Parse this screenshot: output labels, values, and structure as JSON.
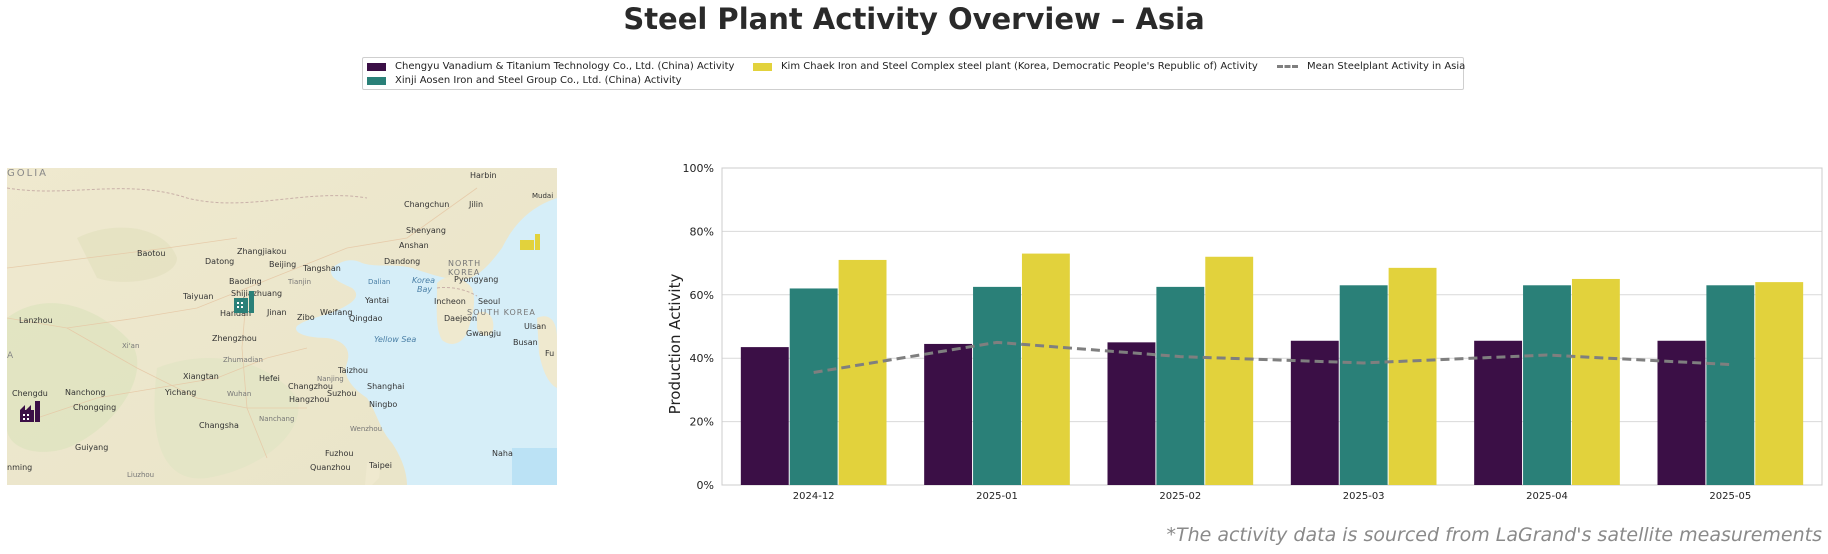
{
  "title": "Steel Plant Activity Overview – Asia",
  "legend": {
    "items": [
      {
        "label": "Chengyu Vanadium & Titanium Technology Co., Ltd. (China) Activity",
        "color": "#3b0f46",
        "kind": "bar"
      },
      {
        "label": "Xinji Aosen Iron and Steel Group Co., Ltd. (China) Activity",
        "color": "#2a8078",
        "kind": "bar"
      },
      {
        "label": "Kim Chaek Iron and Steel Complex steel plant (Korea, Democratic People's Republic of) Activity",
        "color": "#e2d23c",
        "kind": "bar"
      },
      {
        "label": "Mean Steelplant Activity in Asia",
        "color": "#7f7f7f",
        "kind": "dashed-line"
      }
    ]
  },
  "map": {
    "labels": {
      "mongolia": "GOLIA",
      "harbin": "Harbin",
      "mudan": "Mudai",
      "changchun": "Changchun",
      "jilin": "Jilin",
      "shenyang": "Shenyang",
      "anshan": "Anshan",
      "dandong": "Dandong",
      "baotou": "Baotou",
      "zhangjiakou": "Zhangjiakou",
      "datong": "Datong",
      "beijing": "Beijing",
      "tangshan": "Tangshan",
      "tianjin": "Tianjin",
      "dalian": "Dalian",
      "korea_bay": "Korea\nBay",
      "north_korea": "NORTH\nKOREA",
      "pyongyang": "Pyongyang",
      "baoding": "Baoding",
      "taiyuan": "Taiyuan",
      "shijiazhuang": "Shijiazhuang",
      "yantai": "Yantai",
      "incheon": "Incheon",
      "seoul": "Seoul",
      "handan": "Handan",
      "jinan": "Jinan",
      "zibo": "Zibo",
      "weifang": "Weifang",
      "qingdao": "Qingdao",
      "daejeon": "Daejeon",
      "south_korea": "SOUTH KOREA",
      "lanzhou": "Lanzhou",
      "gwangju": "Gwangju",
      "ulsan": "Ulsan",
      "busan": "Busan",
      "xian": "Xi'an",
      "zhengzhou": "Zhengzhou",
      "yellow_sea": "Yellow Sea",
      "fu": "Fu",
      "a": "A",
      "zhumadian": "Zhumadian",
      "xiangtan": "Xiangtan",
      "hefei": "Hefei",
      "taizhou": "Taizhou",
      "nanjing": "Nanjing",
      "changzhou": "Changzhou",
      "shanghai": "Shanghai",
      "suzhou": "Suzhou",
      "chengdu": "Chengdu",
      "nanchong": "Nanchong",
      "yichang": "Yichang",
      "wuhan": "Wuhan",
      "hangzhou": "Hangzhou",
      "ningbo": "Ningbo",
      "chongqing": "Chongqing",
      "nanchang": "Nanchang",
      "changsha": "Changsha",
      "wenzhou": "Wenzhou",
      "guiyang": "Guiyang",
      "fuzhou": "Fuzhou",
      "naha": "Naha",
      "kunming": "nming",
      "liuzhou": "Liuzhou",
      "quanzhou": "Quanzhou",
      "taipei": "Taipei"
    },
    "markers": [
      {
        "plant": "Chengyu Vanadium & Titanium Technology Co., Ltd.",
        "color": "#3b0f46",
        "icon": "factory-icon"
      },
      {
        "plant": "Xinji Aosen Iron and Steel Group Co., Ltd.",
        "color": "#2a8078",
        "icon": "factory-icon"
      },
      {
        "plant": "Kim Chaek Iron and Steel Complex",
        "color": "#e2d23c",
        "icon": "factory-icon"
      }
    ]
  },
  "chart_data": {
    "type": "bar",
    "categories": [
      "2024-12",
      "2025-01",
      "2025-02",
      "2025-03",
      "2025-04",
      "2025-05"
    ],
    "series": [
      {
        "name": "Chengyu Vanadium & Titanium Technology Co., Ltd. (China) Activity",
        "color": "#3b0f46",
        "values": [
          43.5,
          44.5,
          45,
          45.5,
          45.5,
          45.5
        ]
      },
      {
        "name": "Xinji Aosen Iron and Steel Group Co., Ltd. (China) Activity",
        "color": "#2a8078",
        "values": [
          62,
          62.5,
          62.5,
          63,
          63,
          63
        ]
      },
      {
        "name": "Kim Chaek Iron and Steel Complex steel plant (Korea, Democratic People's Republic of) Activity",
        "color": "#e2d23c",
        "values": [
          71,
          73,
          72,
          68.5,
          65,
          64
        ]
      }
    ],
    "line": {
      "name": "Mean Steelplant Activity in Asia",
      "color": "#7f7f7f",
      "style": "dashed",
      "values": [
        35.5,
        45,
        40.5,
        38.5,
        41,
        38
      ]
    },
    "ylabel": "Production Activity",
    "xlabel": "",
    "ylim": [
      0,
      100
    ],
    "yticks": [
      "0%",
      "20%",
      "40%",
      "60%",
      "80%",
      "100%"
    ],
    "grid": true
  },
  "footer": "*The activity data is sourced from LaGrand's satellite measurements"
}
